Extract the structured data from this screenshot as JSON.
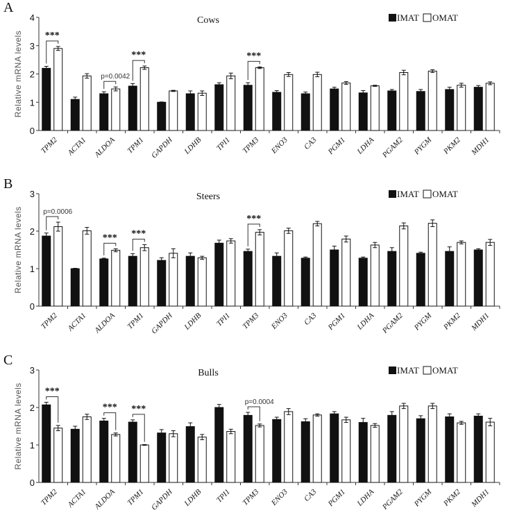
{
  "chart_data": [
    {
      "type": "bar",
      "panel_letter": "A",
      "title": "Cows",
      "ylabel": "Relative mRNA levels",
      "ylim": [
        0,
        4
      ],
      "yticks": [
        0,
        1,
        2,
        3,
        4
      ],
      "legend": [
        "IMAT",
        "OMAT"
      ],
      "legend_position": "top-right",
      "categories": [
        "TPM2",
        "ACTA1",
        "ALDOA",
        "TPM1",
        "GAPDH",
        "LDHB",
        "TPI1",
        "TPM3",
        "ENO3",
        "CA3",
        "PGM1",
        "LDHA",
        "PGAM2",
        "PYGM",
        "PKM2",
        "MDH1"
      ],
      "series": [
        {
          "name": "IMAT",
          "values": [
            2.2,
            1.1,
            1.3,
            1.57,
            1.0,
            1.3,
            1.62,
            1.6,
            1.35,
            1.3,
            1.47,
            1.33,
            1.4,
            1.38,
            1.45,
            1.53
          ],
          "errors": [
            0.07,
            0.08,
            0.07,
            0.09,
            0.01,
            0.1,
            0.07,
            0.09,
            0.06,
            0.06,
            0.06,
            0.08,
            0.05,
            0.07,
            0.08,
            0.06
          ]
        },
        {
          "name": "OMAT",
          "values": [
            2.9,
            1.93,
            1.47,
            2.22,
            1.4,
            1.32,
            1.93,
            2.22,
            1.98,
            1.98,
            1.68,
            1.58,
            2.05,
            2.1,
            1.6,
            1.67
          ],
          "errors": [
            0.07,
            0.08,
            0.07,
            0.06,
            0.02,
            0.08,
            0.1,
            0.03,
            0.07,
            0.08,
            0.05,
            0.02,
            0.08,
            0.05,
            0.07,
            0.05
          ]
        }
      ],
      "annotations": [
        {
          "category": "TPM2",
          "text": "***"
        },
        {
          "category": "ALDOA",
          "text": "p=0.0042"
        },
        {
          "category": "TPM1",
          "text": "***"
        },
        {
          "category": "TPM3",
          "text": "***"
        }
      ]
    },
    {
      "type": "bar",
      "panel_letter": "B",
      "title": "Steers",
      "ylabel": "Relative mRNA levels",
      "ylim": [
        0,
        3
      ],
      "yticks": [
        0,
        1,
        2,
        3
      ],
      "legend": [
        "IMAT",
        "OMAT"
      ],
      "legend_position": "top-right",
      "categories": [
        "TPM2",
        "ACTA1",
        "ALDOA",
        "TPM1",
        "GAPDH",
        "LDHB",
        "TPI1",
        "TPM3",
        "ENO3",
        "CA3",
        "PGM1",
        "LDHA",
        "PGAM2",
        "PYGM",
        "PKM2",
        "MDH1"
      ],
      "series": [
        {
          "name": "IMAT",
          "values": [
            1.87,
            1.0,
            1.26,
            1.33,
            1.22,
            1.33,
            1.68,
            1.46,
            1.33,
            1.28,
            1.5,
            1.28,
            1.46,
            1.41,
            1.46,
            1.5
          ],
          "errors": [
            0.08,
            0.01,
            0.02,
            0.07,
            0.07,
            0.09,
            0.08,
            0.06,
            0.09,
            0.03,
            0.1,
            0.03,
            0.1,
            0.03,
            0.12,
            0.03
          ]
        },
        {
          "name": "OMAT",
          "values": [
            2.12,
            2.01,
            1.49,
            1.56,
            1.41,
            1.29,
            1.74,
            1.97,
            2.01,
            2.2,
            1.79,
            1.63,
            2.14,
            2.21,
            1.7,
            1.7
          ],
          "errors": [
            0.12,
            0.09,
            0.04,
            0.08,
            0.12,
            0.04,
            0.06,
            0.07,
            0.07,
            0.06,
            0.08,
            0.07,
            0.08,
            0.09,
            0.04,
            0.08
          ]
        }
      ],
      "annotations": [
        {
          "category": "TPM2",
          "text": "p=0.0006"
        },
        {
          "category": "ALDOA",
          "text": "***"
        },
        {
          "category": "TPM1",
          "text": "***"
        },
        {
          "category": "TPM3",
          "text": "***"
        }
      ]
    },
    {
      "type": "bar",
      "panel_letter": "C",
      "title": "Bulls",
      "ylabel": "Relative mRNA levels",
      "ylim": [
        0,
        3
      ],
      "yticks": [
        0,
        1,
        2,
        3
      ],
      "legend": [
        "IMAT",
        "OMAT"
      ],
      "legend_position": "top-right",
      "categories": [
        "TPM2",
        "ACTA1",
        "ALDOA",
        "TPM1",
        "GAPDH",
        "LDHB",
        "TPI1",
        "TPM3",
        "ENO3",
        "CA3",
        "PGM1",
        "LDHA",
        "PGAM2",
        "PYGM",
        "PKM2",
        "MDH1"
      ],
      "series": [
        {
          "name": "IMAT",
          "values": [
            2.07,
            1.42,
            1.64,
            1.61,
            1.32,
            1.49,
            2.0,
            1.79,
            1.68,
            1.62,
            1.83,
            1.6,
            1.79,
            1.7,
            1.75,
            1.77
          ],
          "errors": [
            0.07,
            0.08,
            0.07,
            0.06,
            0.09,
            0.1,
            0.08,
            0.08,
            0.06,
            0.08,
            0.06,
            0.11,
            0.1,
            0.08,
            0.08,
            0.06
          ]
        },
        {
          "name": "OMAT",
          "values": [
            1.45,
            1.75,
            1.28,
            1.0,
            1.3,
            1.21,
            1.36,
            1.52,
            1.89,
            1.8,
            1.67,
            1.52,
            2.04,
            2.04,
            1.59,
            1.61
          ],
          "errors": [
            0.07,
            0.07,
            0.04,
            0.01,
            0.08,
            0.07,
            0.06,
            0.04,
            0.08,
            0.03,
            0.07,
            0.05,
            0.07,
            0.07,
            0.04,
            0.1
          ]
        }
      ],
      "annotations": [
        {
          "category": "TPM2",
          "text": "***"
        },
        {
          "category": "ALDOA",
          "text": "***"
        },
        {
          "category": "TPM1",
          "text": "***"
        },
        {
          "category": "TPM3",
          "text": "p=0.0004"
        }
      ]
    }
  ]
}
